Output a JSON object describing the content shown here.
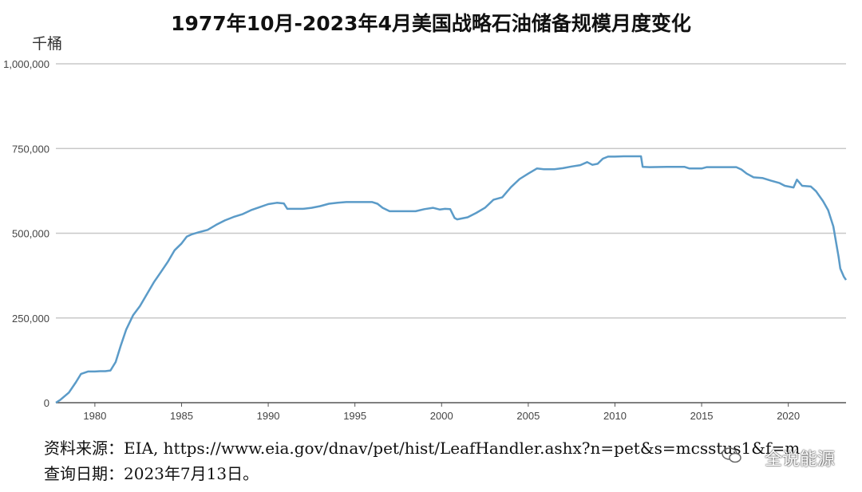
{
  "title": "1977年10月-2023年4月美国战略石油储备规模月度变化",
  "unit_label": "千桶",
  "source_text": "资料来源：EIA, https://www.eia.gov/dnav/pet/hist/LeafHandler.ashx?n=pet&s=mcsstus1&f=m",
  "date_text": "查询日期：2023年7月13日。",
  "watermark": "全说能源",
  "colors": {
    "line": "#5b9bc8",
    "grid": "#c8c8c8",
    "axis": "#555555"
  },
  "chart_data": {
    "type": "line",
    "title": "1977年10月-2023年4月美国战略石油储备规模月度变化",
    "ylabel": "千桶",
    "xlabel": "",
    "xlim": [
      1977.75,
      2023.33
    ],
    "ylim": [
      0,
      1000000
    ],
    "x_ticks": [
      1980,
      1985,
      1990,
      1995,
      2000,
      2005,
      2010,
      2015,
      2020
    ],
    "y_ticks": [
      0,
      250000,
      500000,
      750000,
      1000000
    ],
    "y_tick_labels": [
      "0",
      "250,000",
      "500,000",
      "750,000",
      "1,000,000"
    ],
    "grid": "horizontal",
    "series": [
      {
        "x": [
          1977.75,
          1978.0,
          1978.5,
          1978.9,
          1979.2,
          1979.6,
          1980.0,
          1980.3,
          1980.6,
          1980.9,
          1981.2,
          1981.5,
          1981.8,
          1982.2,
          1982.6,
          1983.0,
          1983.4,
          1983.8,
          1984.2,
          1984.6,
          1985.0,
          1985.3,
          1985.6,
          1986.0,
          1986.5,
          1987.0,
          1987.5,
          1988.0,
          1988.5,
          1989.0,
          1989.5,
          1990.0,
          1990.5,
          1990.9,
          1991.1,
          1991.5,
          1992.0,
          1992.5,
          1993.0,
          1993.5,
          1994.0,
          1994.5,
          1995.0,
          1995.5,
          1996.0,
          1996.3,
          1996.6,
          1997.0,
          1997.5,
          1998.0,
          1998.5,
          1999.0,
          1999.5,
          1999.9,
          2000.2,
          2000.5,
          2000.75,
          2000.9,
          2001.5,
          2002.0,
          2002.5,
          2003.0,
          2003.5,
          2004.0,
          2004.5,
          2005.0,
          2005.5,
          2005.9,
          2006.2,
          2006.5,
          2007.0,
          2007.5,
          2008.0,
          2008.4,
          2008.7,
          2009.0,
          2009.3,
          2009.6,
          2010.0,
          2010.5,
          2011.0,
          2011.5,
          2011.6,
          2012.0,
          2013.0,
          2014.0,
          2014.3,
          2015.0,
          2015.3,
          2016.0,
          2017.0,
          2017.3,
          2017.6,
          2018.0,
          2018.5,
          2019.0,
          2019.5,
          2019.8,
          2020.3,
          2020.5,
          2020.8,
          2021.3,
          2021.6,
          2022.0,
          2022.3,
          2022.6,
          2022.9,
          2023.0,
          2023.2,
          2023.33
        ],
        "y": [
          0,
          8000,
          30000,
          60000,
          85000,
          92000,
          92000,
          93000,
          93000,
          95000,
          120000,
          170000,
          215000,
          258000,
          285000,
          320000,
          355000,
          385000,
          415000,
          450000,
          470000,
          490000,
          497000,
          503000,
          510000,
          525000,
          538000,
          548000,
          556000,
          568000,
          577000,
          586000,
          590000,
          588000,
          572000,
          572000,
          572000,
          575000,
          580000,
          587000,
          590000,
          592000,
          592000,
          592000,
          592000,
          587000,
          575000,
          565000,
          565000,
          565000,
          565000,
          571000,
          575000,
          570000,
          572000,
          571000,
          545000,
          541000,
          547000,
          560000,
          575000,
          599000,
          606000,
          636000,
          660000,
          676000,
          691000,
          689000,
          689000,
          689000,
          692000,
          697000,
          701000,
          710000,
          702000,
          705000,
          720000,
          726000,
          726000,
          727000,
          727000,
          727000,
          696000,
          695000,
          696000,
          696000,
          691000,
          691000,
          695000,
          695000,
          695000,
          688000,
          676000,
          665000,
          663000,
          655000,
          648000,
          640000,
          635000,
          658000,
          640000,
          638000,
          624000,
          595000,
          568000,
          520000,
          430000,
          396000,
          372000,
          362000
        ]
      }
    ]
  }
}
